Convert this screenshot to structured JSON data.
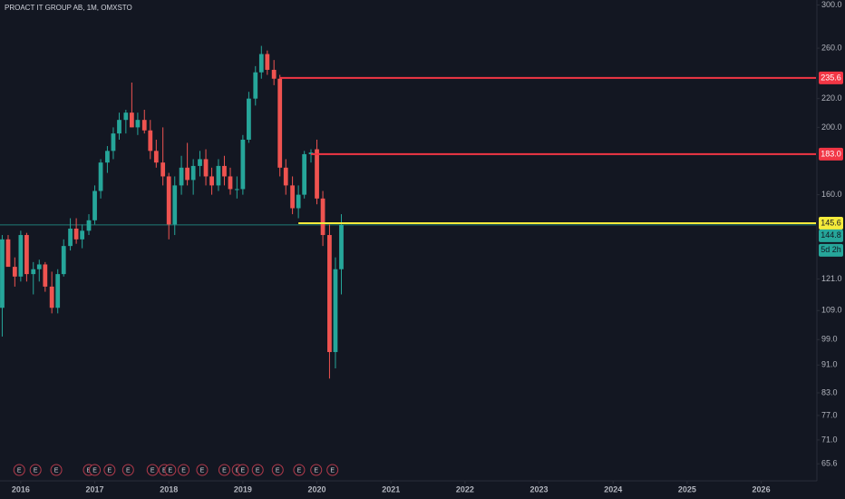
{
  "chart_data": {
    "type": "candlestick",
    "title": "PROACT IT GROUP AB, 1M, OMXSTO",
    "log_scale": true,
    "grid": false,
    "up_color": "#26a69a",
    "down_color": "#ef5350",
    "xlim": [
      2015.72,
      2026.74
    ],
    "xticks": [
      2016,
      2017,
      2018,
      2019,
      2020,
      2021,
      2022,
      2023,
      2024,
      2025,
      2026
    ],
    "ylim": [
      62,
      305
    ],
    "yticks": [
      {
        "value": 300,
        "label": "300.0"
      },
      {
        "value": 260,
        "label": "260.0"
      },
      {
        "value": 220,
        "label": "220.0"
      },
      {
        "value": 200,
        "label": "200.0"
      },
      {
        "value": 160,
        "label": "160.0"
      },
      {
        "value": 121,
        "label": "121.0"
      },
      {
        "value": 109,
        "label": "109.0"
      },
      {
        "value": 99,
        "label": "99.0"
      },
      {
        "value": 91,
        "label": "91.0"
      },
      {
        "value": 83,
        "label": "83.0"
      },
      {
        "value": 77,
        "label": "77.0"
      },
      {
        "value": 71,
        "label": "71.0"
      },
      65.6
    ],
    "x": [
      2015.75,
      2015.83,
      2015.92,
      2016.0,
      2016.08,
      2016.17,
      2016.25,
      2016.33,
      2016.42,
      2016.5,
      2016.58,
      2016.67,
      2016.75,
      2016.83,
      2016.92,
      2017.0,
      2017.08,
      2017.17,
      2017.25,
      2017.33,
      2017.42,
      2017.5,
      2017.58,
      2017.67,
      2017.75,
      2017.83,
      2017.92,
      2018.0,
      2018.08,
      2018.17,
      2018.25,
      2018.33,
      2018.42,
      2018.5,
      2018.58,
      2018.67,
      2018.75,
      2018.83,
      2018.92,
      2019.0,
      2019.08,
      2019.17,
      2019.25,
      2019.33,
      2019.42,
      2019.5,
      2019.58,
      2019.67,
      2019.75,
      2019.83,
      2019.92,
      2020.0,
      2020.08,
      2020.17,
      2020.25,
      2020.33
    ],
    "open": [
      110,
      138,
      126,
      122,
      140,
      123,
      125,
      127,
      118,
      110,
      123,
      135,
      143,
      138,
      142,
      147,
      162,
      178,
      185,
      196,
      205,
      210,
      200,
      205,
      198,
      185,
      178,
      170,
      145,
      165,
      175,
      168,
      176,
      180,
      170,
      165,
      176,
      170,
      163,
      163,
      192,
      220,
      240,
      255,
      242,
      235,
      175,
      165,
      153,
      160,
      183,
      186,
      158,
      140,
      95,
      125
    ],
    "high": [
      140,
      140,
      130,
      142,
      141,
      128,
      129,
      128,
      124,
      125,
      138,
      148,
      148,
      145,
      150,
      165,
      180,
      188,
      200,
      210,
      212,
      232,
      210,
      212,
      205,
      192,
      200,
      172,
      170,
      182,
      190,
      180,
      185,
      186,
      175,
      180,
      182,
      175,
      170,
      195,
      225,
      245,
      262,
      258,
      250,
      238,
      180,
      170,
      165,
      185,
      186,
      192,
      162,
      145,
      130,
      150
    ],
    "low": [
      100,
      128,
      118,
      120,
      120,
      115,
      120,
      116,
      108,
      108,
      122,
      133,
      136,
      134,
      140,
      145,
      158,
      172,
      180,
      192,
      196,
      200,
      195,
      196,
      180,
      175,
      165,
      138,
      140,
      160,
      165,
      160,
      170,
      165,
      160,
      162,
      165,
      160,
      158,
      160,
      190,
      215,
      235,
      238,
      230,
      170,
      160,
      150,
      148,
      158,
      178,
      155,
      135,
      87,
      90,
      115
    ],
    "close": [
      138,
      126,
      122,
      140,
      123,
      125,
      127,
      118,
      110,
      123,
      135,
      143,
      138,
      142,
      147,
      162,
      178,
      185,
      196,
      205,
      210,
      200,
      205,
      198,
      185,
      178,
      170,
      145,
      165,
      175,
      168,
      176,
      180,
      170,
      165,
      176,
      170,
      163,
      163,
      192,
      220,
      240,
      255,
      242,
      235,
      175,
      165,
      153,
      160,
      183,
      184,
      158,
      140,
      95,
      125,
      144.8
    ],
    "levels": [
      {
        "value": 235.6,
        "color": "#f23645",
        "from": 2019.5
      },
      {
        "value": {
          "value": 183,
          "label": "183.0"
        },
        "color": "#f23645",
        "from": 2019.92
      },
      {
        "value": 145.6,
        "color": "#f5eb3b",
        "from": 2019.75
      }
    ],
    "last": {
      "value": 144.8,
      "color": "#26a69a",
      "countdown": "5d 2h"
    },
    "events": [
      {
        "x": 2015.98,
        "label": "E"
      },
      {
        "x": 2016.2,
        "label": "E"
      },
      {
        "x": 2016.48,
        "label": "E"
      },
      {
        "x": 2016.92,
        "label": "E"
      },
      {
        "x": 2017.0,
        "label": "E"
      },
      {
        "x": 2017.2,
        "label": "E"
      },
      {
        "x": 2017.45,
        "label": "E"
      },
      {
        "x": 2017.78,
        "label": "E"
      },
      {
        "x": 2017.94,
        "label": "E"
      },
      {
        "x": 2018.02,
        "label": "E"
      },
      {
        "x": 2018.2,
        "label": "E"
      },
      {
        "x": 2018.45,
        "label": "E"
      },
      {
        "x": 2018.75,
        "label": "E"
      },
      {
        "x": 2018.93,
        "label": "E"
      },
      {
        "x": 2019.0,
        "label": "E"
      },
      {
        "x": 2019.2,
        "label": "E"
      },
      {
        "x": 2019.47,
        "label": "E"
      },
      {
        "x": 2019.76,
        "label": "E"
      },
      {
        "x": 2019.99,
        "label": "E"
      },
      {
        "x": 2020.21,
        "label": "E"
      }
    ]
  }
}
